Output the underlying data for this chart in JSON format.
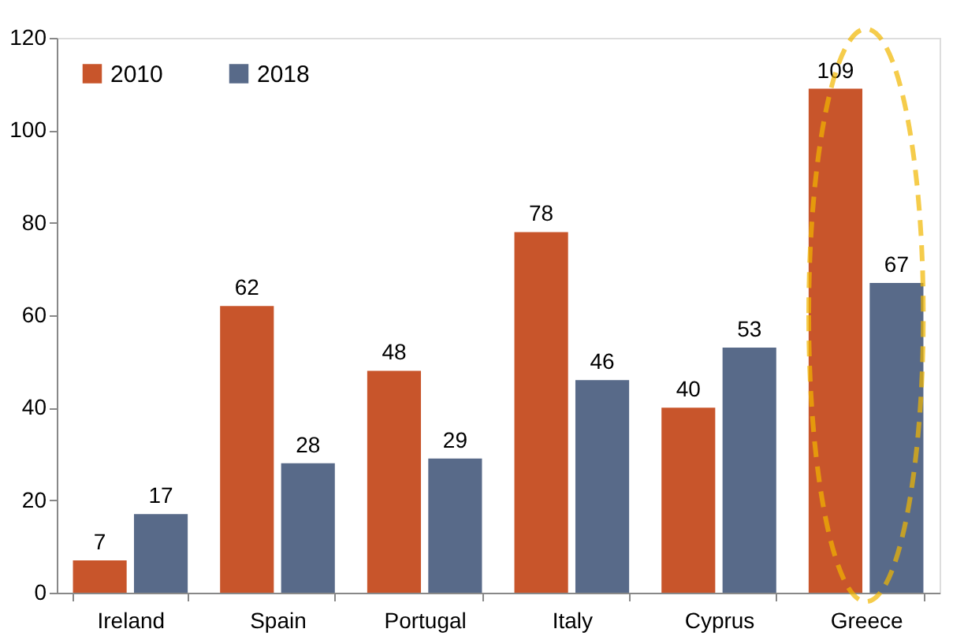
{
  "chart_data": {
    "type": "bar",
    "categories": [
      "Ireland",
      "Spain",
      "Portugal",
      "Italy",
      "Cyprus",
      "Greece"
    ],
    "series": [
      {
        "name": "2010",
        "color": "#c8552b",
        "values": [
          7,
          62,
          48,
          78,
          40,
          109
        ]
      },
      {
        "name": "2018",
        "color": "#586a89",
        "values": [
          17,
          28,
          29,
          46,
          53,
          67
        ]
      }
    ],
    "ylim": [
      0,
      120
    ],
    "yticks": [
      0,
      20,
      40,
      60,
      80,
      100,
      120
    ],
    "grid": false,
    "legend": "top left",
    "data_labels": true
  }
}
